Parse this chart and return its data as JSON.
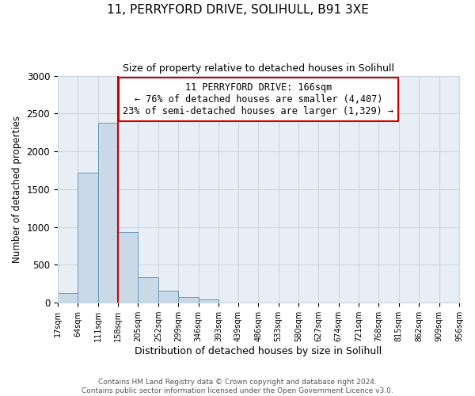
{
  "title": "11, PERRYFORD DRIVE, SOLIHULL, B91 3XE",
  "subtitle": "Size of property relative to detached houses in Solihull",
  "xlabel": "Distribution of detached houses by size in Solihull",
  "ylabel": "Number of detached properties",
  "bar_values": [
    125,
    1720,
    2375,
    930,
    340,
    155,
    80,
    40,
    5,
    5,
    0,
    0,
    0,
    0,
    0,
    0,
    0,
    0,
    0,
    0
  ],
  "bin_edges": [
    17,
    64,
    111,
    158,
    205,
    252,
    299,
    346,
    393,
    439,
    486,
    533,
    580,
    627,
    674,
    721,
    768,
    815,
    862,
    909,
    956
  ],
  "tick_labels": [
    "17sqm",
    "64sqm",
    "111sqm",
    "158sqm",
    "205sqm",
    "252sqm",
    "299sqm",
    "346sqm",
    "393sqm",
    "439sqm",
    "486sqm",
    "533sqm",
    "580sqm",
    "627sqm",
    "674sqm",
    "721sqm",
    "768sqm",
    "815sqm",
    "862sqm",
    "909sqm",
    "956sqm"
  ],
  "bar_color": "#c9d9e8",
  "bar_edge_color": "#6699bb",
  "vline_x": 158,
  "vline_color": "#cc0000",
  "ylim": [
    0,
    3000
  ],
  "yticks": [
    0,
    500,
    1000,
    1500,
    2000,
    2500,
    3000
  ],
  "annotation_title": "11 PERRYFORD DRIVE: 166sqm",
  "annotation_line1": "← 76% of detached houses are smaller (4,407)",
  "annotation_line2": "23% of semi-detached houses are larger (1,329) →",
  "annotation_box_color": "#ffffff",
  "annotation_box_edge": "#cc0000",
  "grid_color": "#ccd6e0",
  "background_color": "#e8eef5",
  "footer_line1": "Contains HM Land Registry data © Crown copyright and database right 2024.",
  "footer_line2": "Contains public sector information licensed under the Open Government Licence v3.0."
}
